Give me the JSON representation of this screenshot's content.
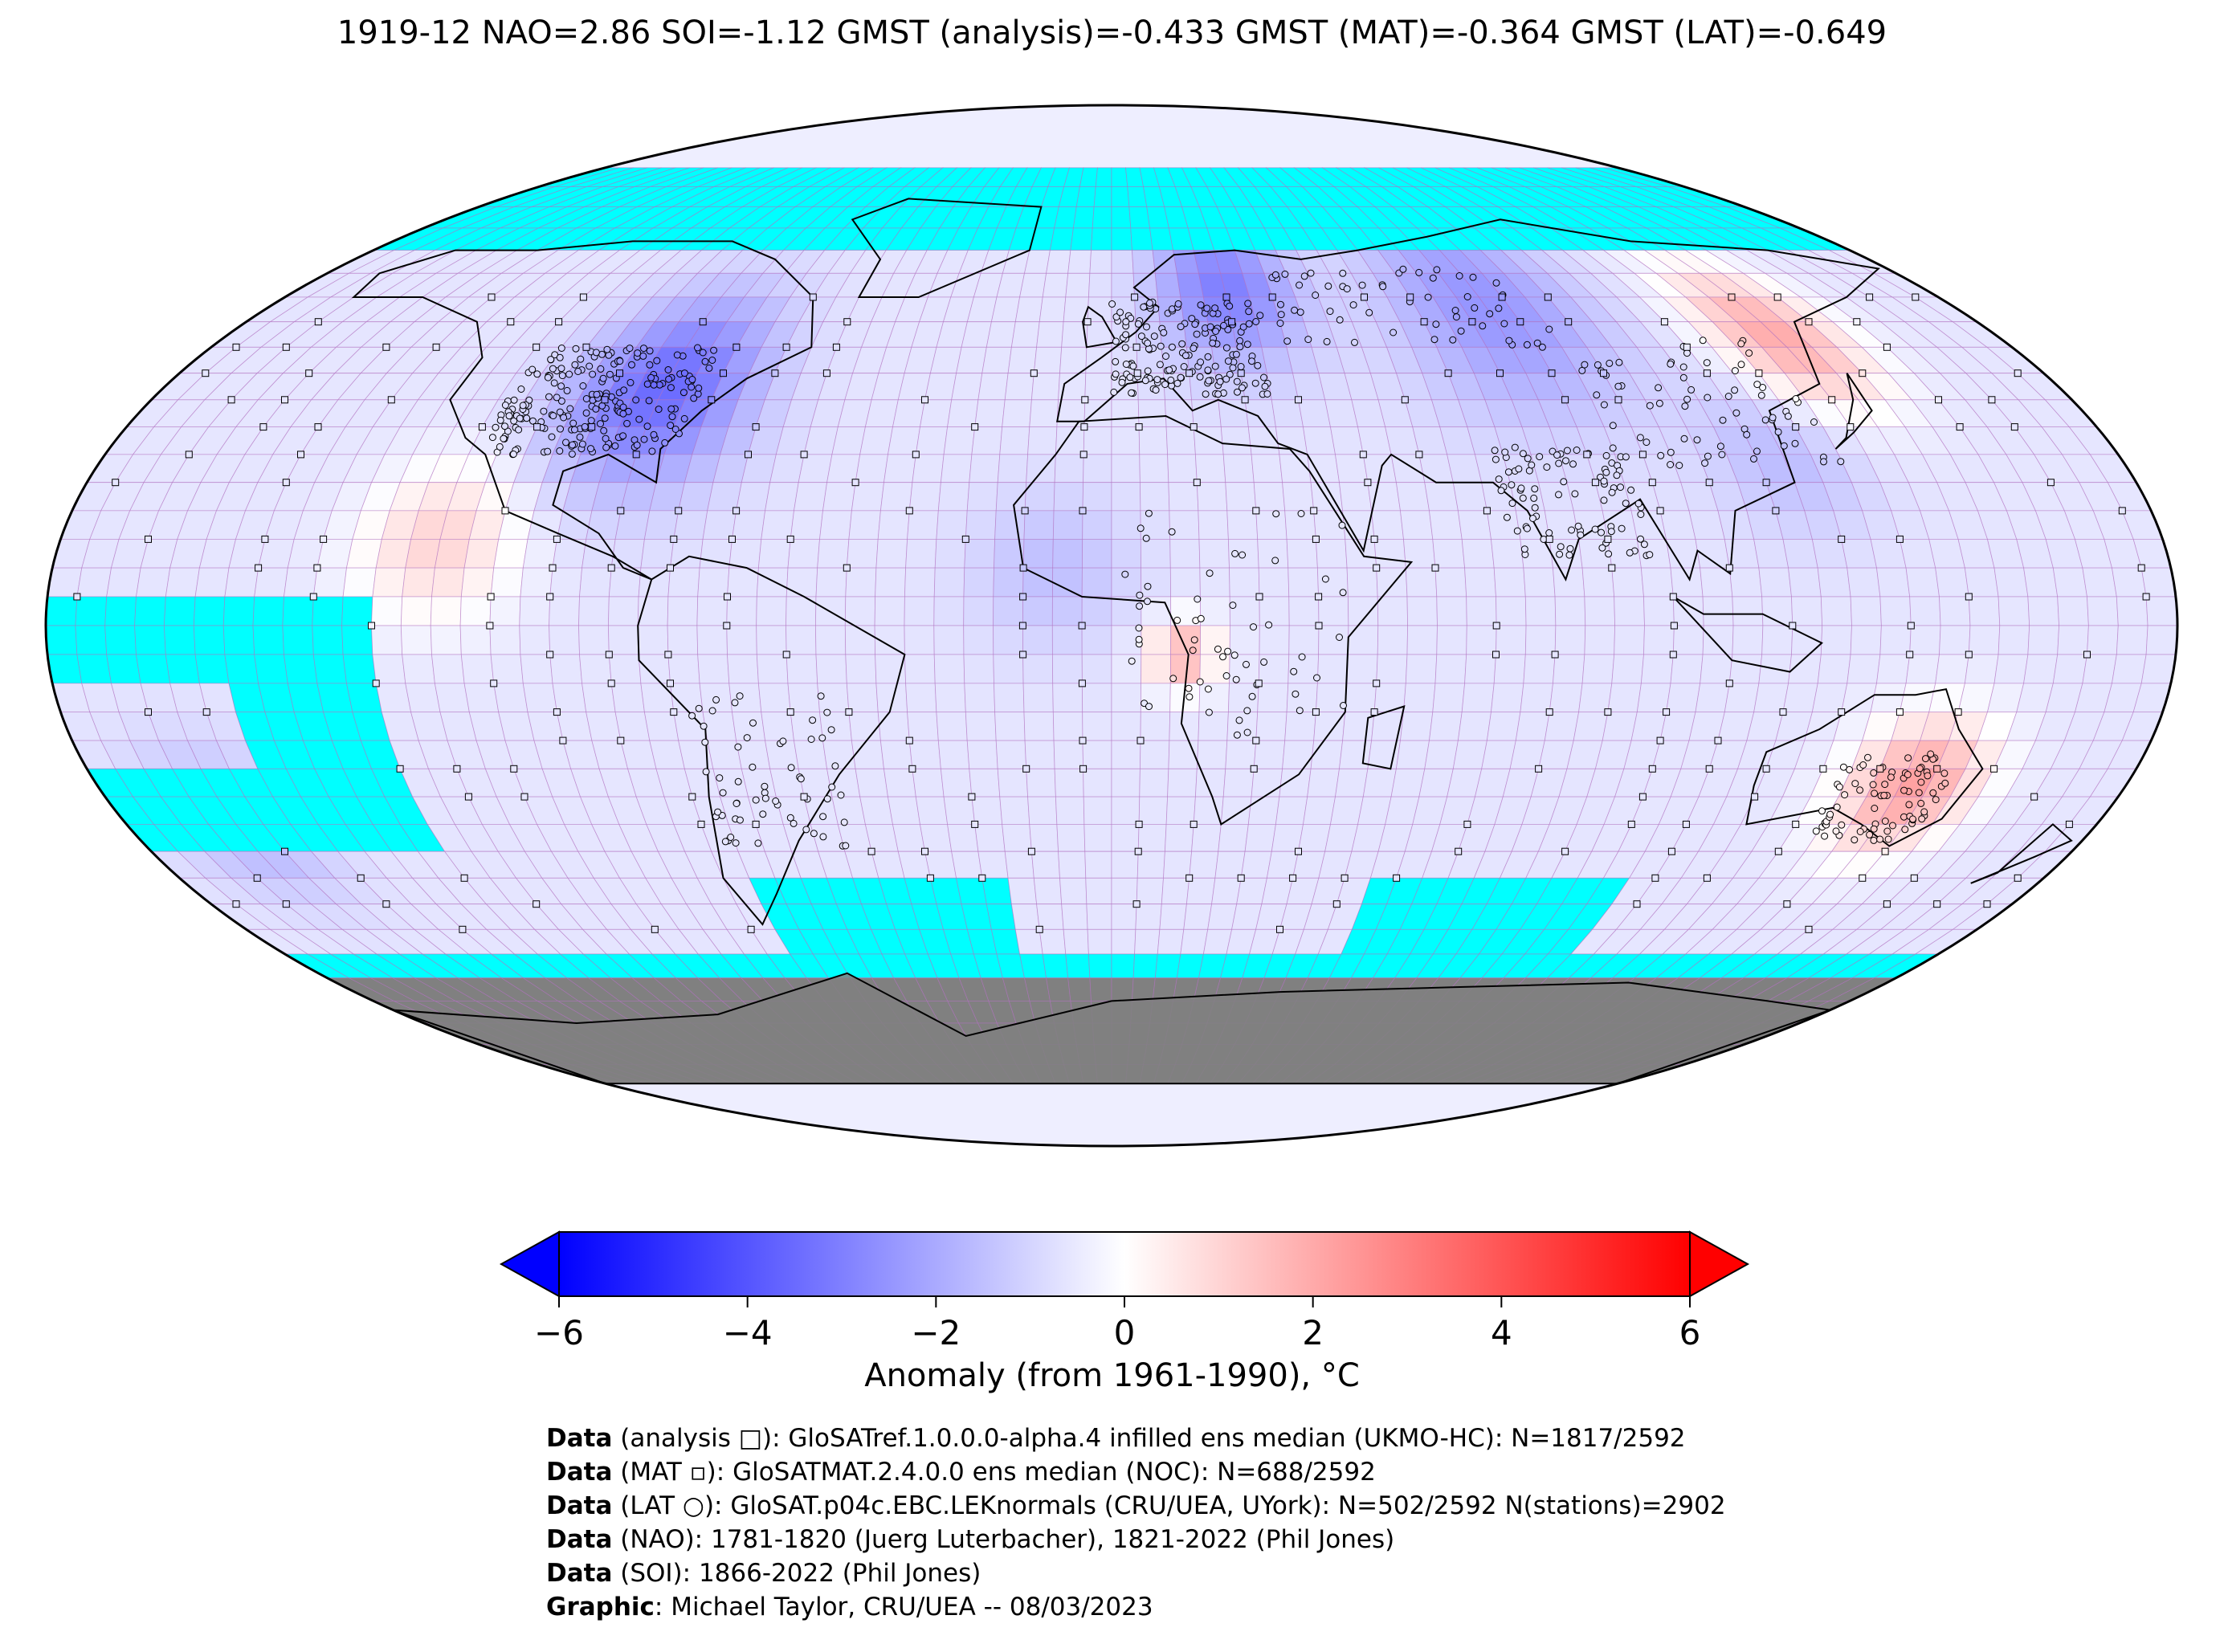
{
  "title": "1919-12 NAO=2.86 SOI=-1.12 GMST (analysis)=-0.433 GMST (MAT)=-0.364 GMST (LAT)=-0.649",
  "colorbar": {
    "label": "Anomaly (from 1961-1990), °C",
    "min": -6,
    "max": 6,
    "ticks": [
      "−6",
      "−4",
      "−2",
      "0",
      "2",
      "4",
      "6"
    ],
    "colors": [
      "#0000ff",
      "#ffffff",
      "#ff0000"
    ]
  },
  "map": {
    "projection": "Robinson",
    "ocean_missing_color": "#00ffff",
    "antarctica_color": "#808080",
    "grid_color": "#b070c0",
    "cell_size_deg": 5,
    "regions": [
      {
        "name": "north-america-cold",
        "anomaly": -3.5
      },
      {
        "name": "northern-europe-cold",
        "anomaly": -3.0
      },
      {
        "name": "siberia-cold",
        "anomaly": -2.5
      },
      {
        "name": "east-asia-warm",
        "anomaly": 2.0
      },
      {
        "name": "australia-warm",
        "anomaly": 2.2
      },
      {
        "name": "equatorial-atlantic-cold",
        "anomaly": -1.5
      },
      {
        "name": "west-africa-warm",
        "anomaly": 1.8
      }
    ],
    "markers": {
      "analysis": "square",
      "MAT": "small-square",
      "LAT": "circle"
    }
  },
  "credits": [
    {
      "head": "Data",
      "text": " (analysis □): GloSATref.1.0.0.0-alpha.4 infilled ens median (UKMO-HC): N=1817/2592"
    },
    {
      "head": "Data",
      "text": " (MAT ▫): GloSATMAT.2.4.0.0 ens median (NOC): N=688/2592"
    },
    {
      "head": "Data",
      "text": " (LAT ○): GloSAT.p04c.EBC.LEKnormals (CRU/UEA, UYork): N=502/2592 N(stations)=2902"
    },
    {
      "head": "Data",
      "text": " (NAO): 1781-1820 (Juerg Luterbacher), 1821-2022 (Phil Jones)"
    },
    {
      "head": "Data",
      "text": " (SOI): 1866-2022 (Phil Jones)"
    },
    {
      "head": "Graphic",
      "text": ": Michael Taylor, CRU/UEA -- 08/03/2023"
    }
  ]
}
